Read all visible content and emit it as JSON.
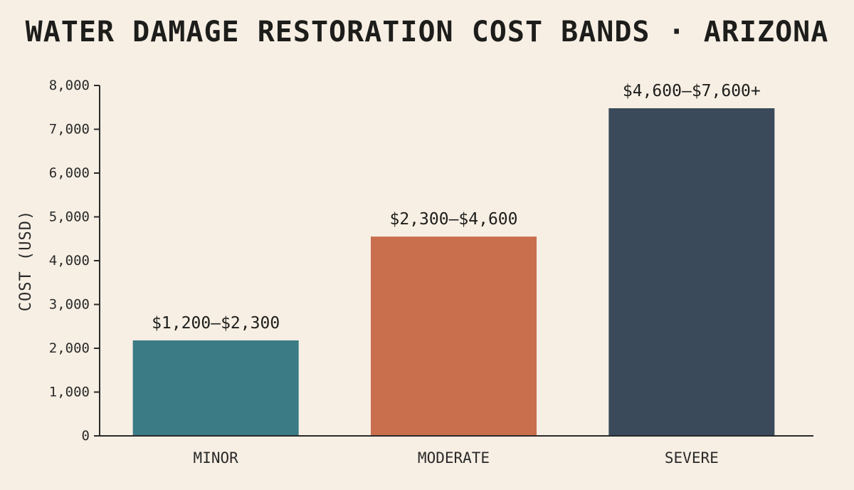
{
  "chart_data": {
    "type": "bar",
    "title": "WATER DAMAGE RESTORATION COST BANDS · ARIZONA",
    "xlabel": "",
    "ylabel": "COST (USD)",
    "ylim": [
      0,
      8000
    ],
    "yticks": [
      0,
      1000,
      2000,
      3000,
      4000,
      5000,
      6000,
      7000,
      8000
    ],
    "ytick_labels": [
      "0",
      "1,000",
      "2,000",
      "3,000",
      "4,000",
      "5,000",
      "6,000",
      "7,000",
      "8,000"
    ],
    "categories": [
      "MINOR",
      "MODERATE",
      "SEVERE"
    ],
    "values": [
      2180,
      4550,
      7480
    ],
    "data_labels": [
      "$1,200–$2,300",
      "$2,300–$4,600",
      "$4,600–$7,600+"
    ],
    "colors": [
      "#3a7b85",
      "#c96f4e",
      "#3a4a5a"
    ],
    "grid": false,
    "legend": "none"
  }
}
